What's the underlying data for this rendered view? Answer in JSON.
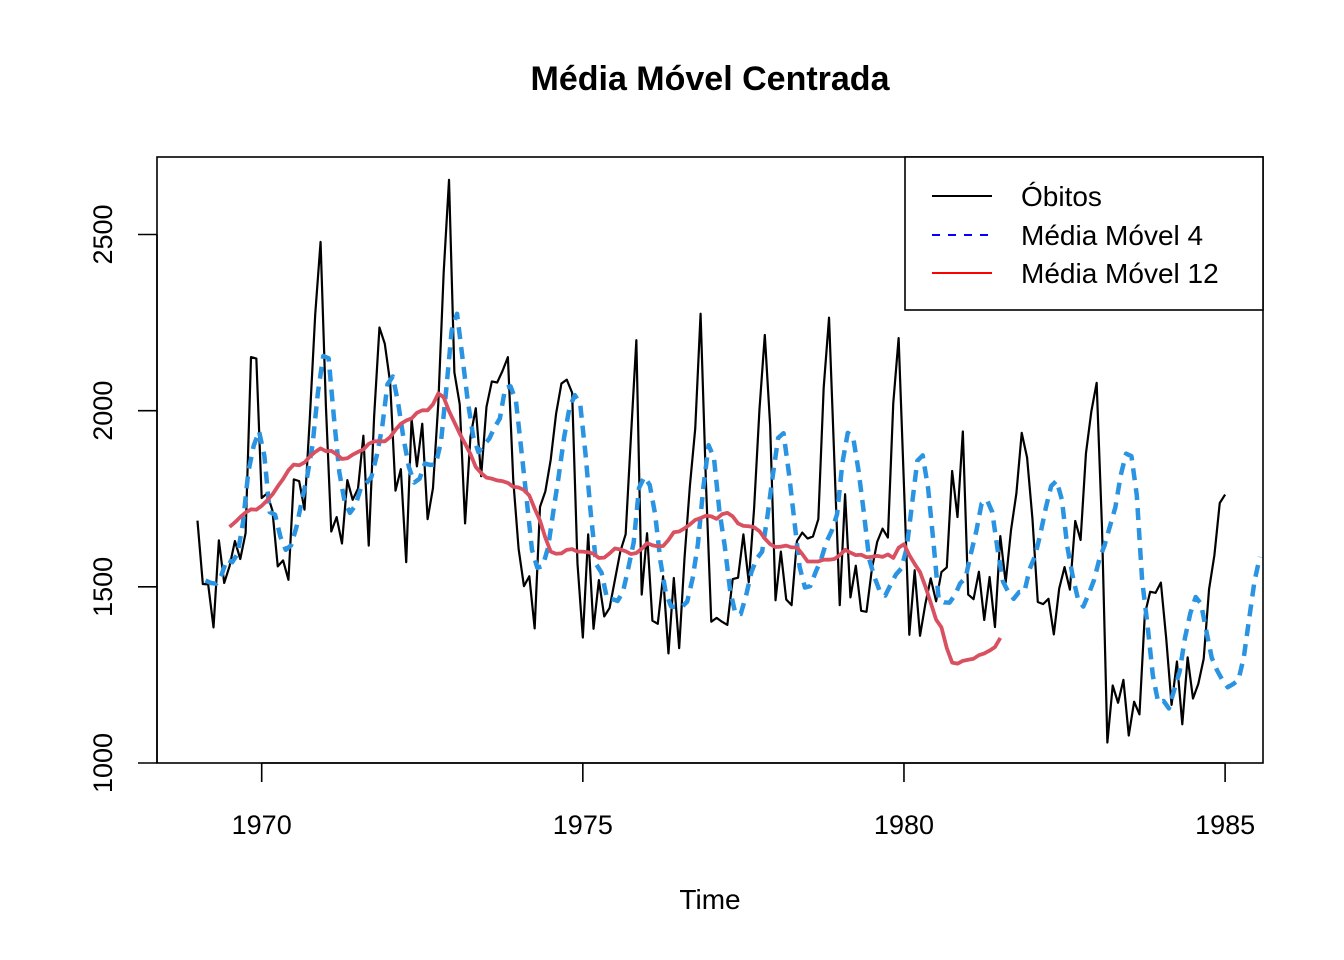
{
  "chart_data": {
    "type": "line",
    "title": "Média Móvel Centrada",
    "xlabel": "Time",
    "ylabel": "",
    "xlim": [
      1968.37,
      1985.59
    ],
    "ylim": [
      1000,
      2720
    ],
    "x_ticks": [
      1970,
      1975,
      1980,
      1985
    ],
    "y_ticks": [
      1000,
      1500,
      2000,
      2500
    ],
    "legend_position": "top-right",
    "grid": false,
    "series": [
      {
        "name": "Óbitos",
        "color": "#000000",
        "style": "solid",
        "start": 1969,
        "frequency": 12,
        "values": [
          1688,
          1508,
          1507,
          1385,
          1632,
          1511,
          1559,
          1630,
          1579,
          1653,
          2152,
          2148,
          1752,
          1765,
          1717,
          1558,
          1575,
          1520,
          1805,
          1800,
          1719,
          1981,
          2273,
          2479,
          2012,
          1657,
          1698,
          1623,
          1803,
          1747,
          1779,
          1929,
          1617,
          1982,
          2236,
          2190,
          2080,
          1773,
          1834,
          1570,
          1976,
          1842,
          1963,
          1692,
          1780,
          2022,
          2392,
          2655,
          2109,
          2018,
          1680,
          1926,
          2007,
          1814,
          2011,
          2083,
          2080,
          2113,
          2152,
          1803,
          1608,
          1502,
          1530,
          1382,
          1727,
          1771,
          1861,
          1991,
          2077,
          2088,
          2051,
          1566,
          1356,
          1649,
          1381,
          1519,
          1416,
          1440,
          1520,
          1600,
          1649,
          1929,
          2200,
          1478,
          1652,
          1404,
          1395,
          1530,
          1311,
          1525,
          1326,
          1582,
          1786,
          1949,
          2275,
          1796,
          1401,
          1412,
          1401,
          1392,
          1522,
          1526,
          1649,
          1513,
          1723,
          2003,
          2215,
          1957,
          1462,
          1600,
          1464,
          1448,
          1630,
          1654,
          1637,
          1643,
          1692,
          2065,
          2264,
          1856,
          1448,
          1763,
          1470,
          1560,
          1432,
          1429,
          1550,
          1628,
          1665,
          1640,
          2021,
          2206,
          1787,
          1364,
          1547,
          1361,
          1452,
          1524,
          1459,
          1542,
          1555,
          1829,
          1698,
          1941,
          1478,
          1465,
          1543,
          1406,
          1528,
          1386,
          1644,
          1512,
          1661,
          1765,
          1937,
          1867,
          1694,
          1457,
          1451,
          1466,
          1365,
          1495,
          1556,
          1492,
          1687,
          1633,
          1879,
          1997,
          2079,
          1668,
          1058,
          1220,
          1171,
          1236,
          1078,
          1174,
          1138,
          1422,
          1486,
          1483,
          1512,
          1353,
          1165,
          1288,
          1110,
          1300,
          1183,
          1225,
          1296,
          1493,
          1590,
          1738,
          1762
        ]
      },
      {
        "name": "Média Móvel 4",
        "color": "#2A94E2",
        "style": "dashed",
        "start": 1969.125,
        "frequency": 12,
        "values": [
          1518,
          1511,
          1509,
          1534,
          1578,
          1570,
          1594,
          1682,
          1826,
          1900,
          1942,
          1872,
          1712,
          1705,
          1642,
          1605,
          1618,
          1670,
          1744,
          1813,
          1903,
          2051,
          2155,
          2149,
          1980,
          1826,
          1741,
          1710,
          1731,
          1779,
          1793,
          1812,
          1873,
          1952,
          2075,
          2097,
          2021,
          1921,
          1840,
          1796,
          1807,
          1850,
          1846,
          1847,
          1911,
          2063,
          2228,
          2275,
          2152,
          2028,
          1928,
          1882,
          1902,
          1920,
          1952,
          1978,
          2065,
          2069,
          2028,
          1890,
          1749,
          1605,
          1554,
          1559,
          1611,
          1715,
          1815,
          1924,
          2008,
          2044,
          2020,
          1877,
          1705,
          1564,
          1540,
          1468,
          1465,
          1460,
          1486,
          1553,
          1626,
          1781,
          1812,
          1789,
          1707,
          1573,
          1483,
          1444,
          1443,
          1443,
          1458,
          1523,
          1621,
          1780,
          1902,
          1866,
          1718,
          1617,
          1492,
          1424,
          1423,
          1475,
          1542,
          1580,
          1600,
          1701,
          1817,
          1923,
          1936,
          1823,
          1690,
          1557,
          1498,
          1502,
          1542,
          1577,
          1627,
          1659,
          1706,
          1852,
          1937,
          1925,
          1831,
          1711,
          1579,
          1527,
          1487,
          1475,
          1506,
          1535,
          1552,
          1609,
          1734,
          1858,
          1873,
          1781,
          1628,
          1462,
          1456,
          1455,
          1476,
          1510,
          1525,
          1594,
          1657,
          1736,
          1747,
          1712,
          1605,
          1515,
          1485,
          1466,
          1485,
          1486,
          1551,
          1588,
          1651,
          1724,
          1786,
          1801,
          1748,
          1616,
          1532,
          1466,
          1444,
          1479,
          1519,
          1578,
          1619,
          1673,
          1726,
          1817,
          1878,
          1871,
          1760,
          1518,
          1392,
          1248,
          1172,
          1176,
          1155,
          1208,
          1259,
          1355,
          1425,
          1471,
          1452,
          1374,
          1299,
          1263,
          1235,
          1215,
          1224,
          1236,
          1301,
          1410,
          1517,
          1585
        ]
      },
      {
        "name": "Média Móvel 12",
        "color": "#D95060",
        "style": "solid",
        "start": 1969.5,
        "frequency": 12,
        "values": [
          1670,
          1683,
          1698,
          1711,
          1720,
          1719,
          1730,
          1745,
          1762,
          1785,
          1806,
          1831,
          1847,
          1845,
          1853,
          1870,
          1883,
          1893,
          1885,
          1886,
          1876,
          1863,
          1865,
          1875,
          1883,
          1890,
          1906,
          1913,
          1913,
          1913,
          1925,
          1946,
          1963,
          1972,
          1978,
          1994,
          2001,
          2001,
          2018,
          2049,
          2038,
          1999,
          1967,
          1935,
          1906,
          1877,
          1840,
          1823,
          1810,
          1807,
          1802,
          1800,
          1795,
          1784,
          1782,
          1775,
          1759,
          1722,
          1688,
          1639,
          1600,
          1594,
          1595,
          1605,
          1607,
          1600,
          1600,
          1598,
          1594,
          1582,
          1583,
          1595,
          1609,
          1606,
          1601,
          1593,
          1596,
          1608,
          1624,
          1618,
          1615,
          1616,
          1633,
          1655,
          1657,
          1666,
          1677,
          1690,
          1695,
          1702,
          1700,
          1693,
          1706,
          1710,
          1700,
          1680,
          1673,
          1672,
          1669,
          1658,
          1637,
          1621,
          1613,
          1614,
          1617,
          1612,
          1612,
          1593,
          1572,
          1572,
          1572,
          1577,
          1577,
          1579,
          1590,
          1605,
          1597,
          1590,
          1591,
          1584,
          1585,
          1588,
          1585,
          1592,
          1582,
          1611,
          1621,
          1590,
          1565,
          1542,
          1501,
          1455,
          1407,
          1385,
          1326,
          1285,
          1282,
          1290,
          1293,
          1296,
          1306,
          1311,
          1319,
          1329,
          1355
        ]
      }
    ]
  }
}
